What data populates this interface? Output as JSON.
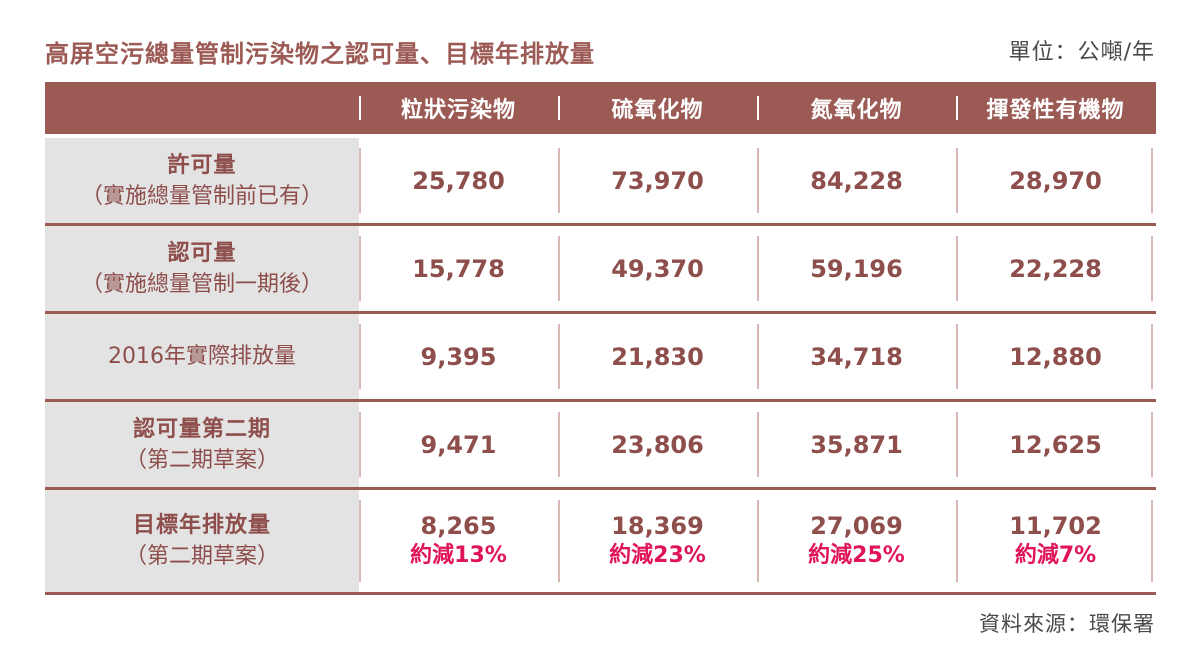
{
  "title": "高屏空污總量管制污染物之認可量、目標年排放量",
  "unit": "單位：公噸/年",
  "columns": [
    "粒狀污染物",
    "硫氧化物",
    "氮氧化物",
    "揮發性有機物"
  ],
  "rows": [
    {
      "label": "許可量",
      "sub": "（實施總量管制前已有）",
      "values": [
        "25,780",
        "73,970",
        "84,228",
        "28,970"
      ]
    },
    {
      "label": "認可量",
      "sub": "（實施總量管制一期後）",
      "values": [
        "15,778",
        "49,370",
        "59,196",
        "22,228"
      ]
    },
    {
      "label": "2016年實際排放量",
      "sub": "",
      "values": [
        "9,395",
        "21,830",
        "34,718",
        "12,880"
      ]
    },
    {
      "label": "認可量第二期",
      "sub": "（第二期草案）",
      "values": [
        "9,471",
        "23,806",
        "35,871",
        "12,625"
      ]
    },
    {
      "label": "目標年排放量",
      "sub": "（第二期草案）",
      "values": [
        "8,265",
        "18,369",
        "27,069",
        "11,702"
      ],
      "reductions": [
        "約減13%",
        "約減23%",
        "約減25%",
        "約減7%"
      ]
    }
  ],
  "source": "資料來源：環保署",
  "colors": {
    "header_bg": "#9c5a55",
    "label_bg": "#e3e3e3",
    "text": "#8e4e4b",
    "reduction": "#e0145a"
  }
}
